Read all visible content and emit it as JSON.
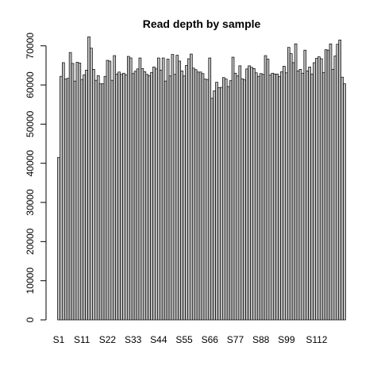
{
  "chart_data": {
    "type": "bar",
    "title": "Read depth by sample",
    "xlabel": "",
    "ylabel": "",
    "ylim": [
      0,
      74000
    ],
    "y_ticks": [
      0,
      10000,
      20000,
      30000,
      40000,
      50000,
      60000,
      70000
    ],
    "x_tick_labels": [
      {
        "index": 0,
        "label": "S1"
      },
      {
        "index": 10,
        "label": "S11"
      },
      {
        "index": 21,
        "label": "S22"
      },
      {
        "index": 32,
        "label": "S33"
      },
      {
        "index": 43,
        "label": "S44"
      },
      {
        "index": 54,
        "label": "S55"
      },
      {
        "index": 65,
        "label": "S66"
      },
      {
        "index": 76,
        "label": "S77"
      },
      {
        "index": 87,
        "label": "S88"
      },
      {
        "index": 98,
        "label": "S99"
      },
      {
        "index": 111,
        "label": "S112"
      }
    ],
    "bar_fill": "#bebebe",
    "bar_stroke": "#000000",
    "values": [
      41500,
      62200,
      65700,
      61500,
      61700,
      68300,
      65500,
      61000,
      65800,
      65600,
      61400,
      62600,
      63800,
      72300,
      69400,
      64000,
      61200,
      62400,
      60300,
      60300,
      62200,
      66300,
      66100,
      61200,
      67500,
      62800,
      63300,
      62700,
      63000,
      62600,
      67300,
      66900,
      62900,
      63500,
      64100,
      66900,
      64200,
      63400,
      62700,
      62400,
      63200,
      64600,
      64100,
      66900,
      63800,
      66900,
      61000,
      66600,
      62300,
      67800,
      62700,
      67600,
      66100,
      63600,
      62300,
      65000,
      66700,
      67900,
      64300,
      63900,
      63300,
      63300,
      62900,
      61500,
      61400,
      66900,
      56600,
      58500,
      60700,
      59300,
      59400,
      61900,
      61500,
      59600,
      61100,
      67100,
      63000,
      62300,
      64900,
      61600,
      61300,
      64100,
      64900,
      64500,
      64200,
      63100,
      62200,
      62900,
      62700,
      67500,
      66600,
      62500,
      63000,
      62800,
      62800,
      62200,
      63400,
      64800,
      63100,
      69600,
      68000,
      65700,
      70500,
      63600,
      64000,
      63000,
      68900,
      63600,
      64600,
      62800,
      65700,
      66800,
      67200,
      66700,
      63200,
      69000,
      68900,
      70500,
      64000,
      67400,
      70400,
      71500,
      62000,
      60300
    ]
  }
}
